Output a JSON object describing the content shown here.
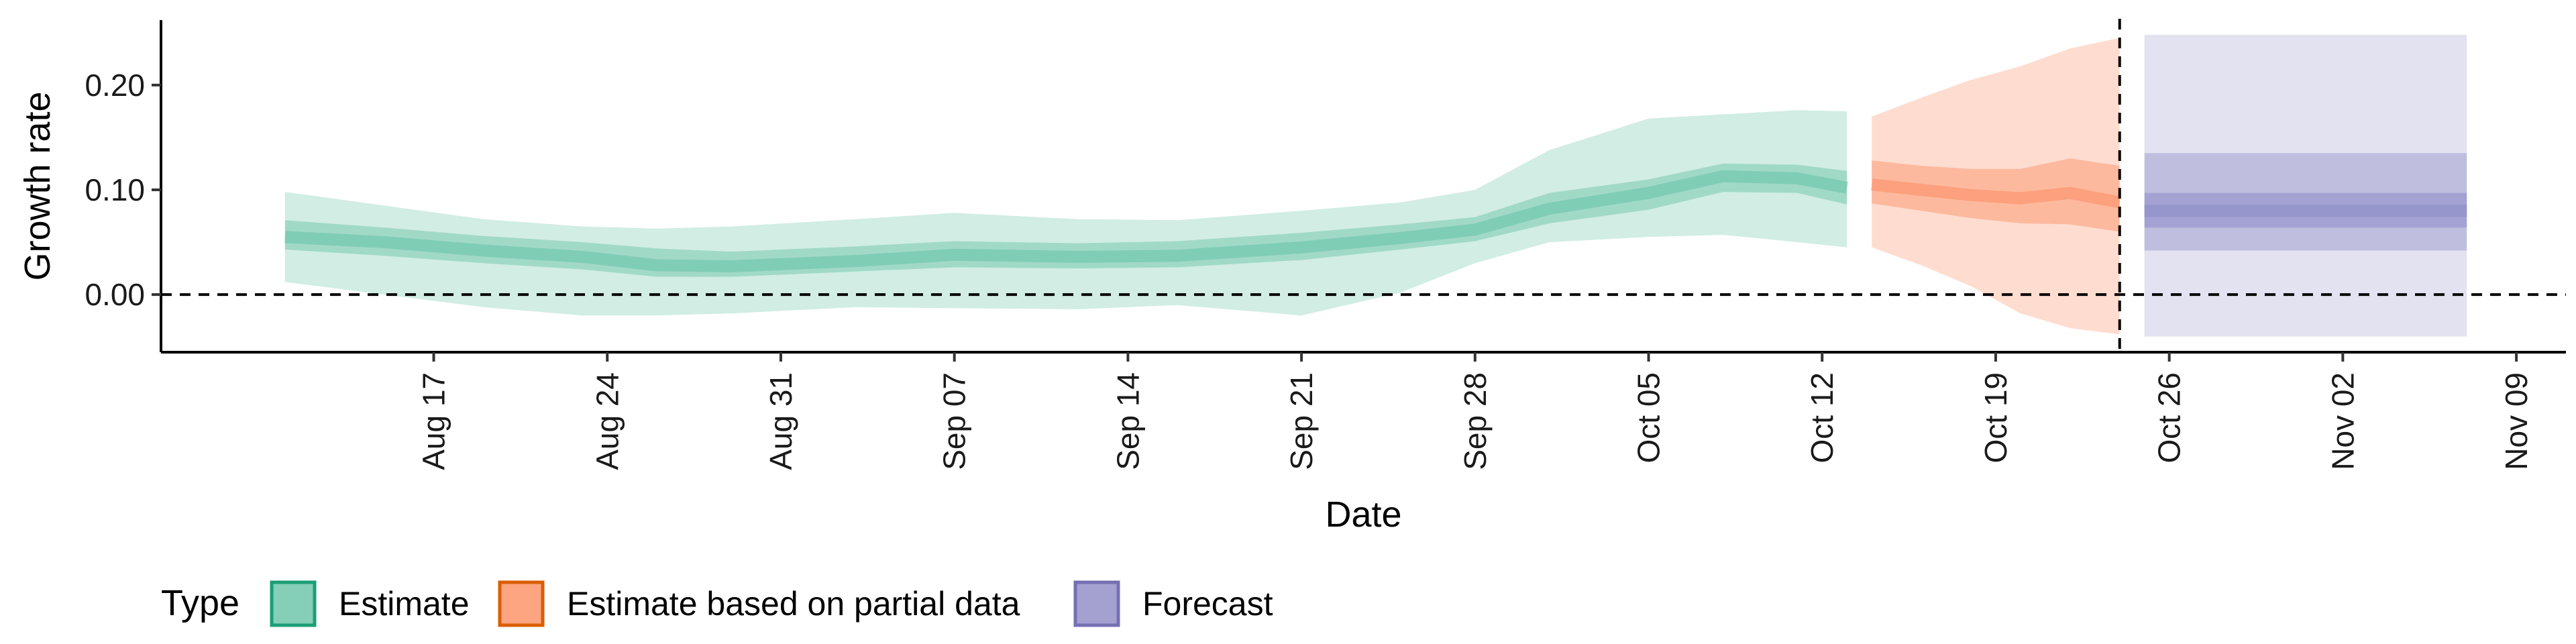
{
  "chart_data": {
    "type": "area",
    "xlabel": "Date",
    "ylabel": "Growth rate",
    "ylim": [
      -0.055,
      0.262
    ],
    "y_ticks": [
      0.0,
      0.1,
      0.2
    ],
    "y_tick_labels": [
      "0.00",
      "0.10",
      "0.20"
    ],
    "x_ticks": [
      "2020-08-17",
      "2020-08-24",
      "2020-08-31",
      "2020-09-07",
      "2020-09-14",
      "2020-09-21",
      "2020-09-28",
      "2020-10-05",
      "2020-10-12",
      "2020-10-19",
      "2020-10-26",
      "2020-11-02",
      "2020-11-09"
    ],
    "x_tick_labels": [
      "Aug 17",
      "Aug 24",
      "Aug 31",
      "Sep 07",
      "Sep 14",
      "Sep 21",
      "Sep 28",
      "Oct 05",
      "Oct 12",
      "Oct 19",
      "Oct 26",
      "Nov 02",
      "Nov 09"
    ],
    "xlim": [
      "2020-08-06",
      "2020-11-11"
    ],
    "reference_lines": [
      {
        "axis": "y",
        "value": 0,
        "style": "dashed"
      },
      {
        "axis": "x",
        "value": "2020-10-24",
        "style": "dashed"
      }
    ],
    "legend": {
      "title": "Type",
      "position": "bottom-left",
      "entries": [
        "Estimate",
        "Estimate based on partial data",
        "Forecast"
      ]
    },
    "colors": {
      "Estimate": {
        "fill": "#66c2a5",
        "line": "#1b9e77"
      },
      "Estimate based on partial data": {
        "fill": "#fc8d62",
        "line": "#d95f02"
      },
      "Forecast": {
        "fill": "#8d8ac6",
        "line": "#7570b3"
      }
    },
    "series": [
      {
        "name": "Estimate",
        "x": [
          "2020-08-11",
          "2020-08-15",
          "2020-08-19",
          "2020-08-23",
          "2020-08-26",
          "2020-08-29",
          "2020-09-03",
          "2020-09-07",
          "2020-09-12",
          "2020-09-16",
          "2020-09-21",
          "2020-09-25",
          "2020-09-28",
          "2020-10-01",
          "2020-10-05",
          "2020-10-08",
          "2020-10-11",
          "2020-10-13"
        ],
        "median": [
          0.055,
          0.05,
          0.042,
          0.036,
          0.028,
          0.027,
          0.032,
          0.038,
          0.036,
          0.037,
          0.045,
          0.054,
          0.062,
          0.082,
          0.097,
          0.113,
          0.111,
          0.102
        ],
        "lower_50": [
          0.043,
          0.037,
          0.03,
          0.024,
          0.017,
          0.017,
          0.022,
          0.026,
          0.025,
          0.026,
          0.033,
          0.043,
          0.051,
          0.068,
          0.081,
          0.098,
          0.097,
          0.086
        ],
        "upper_50": [
          0.071,
          0.064,
          0.056,
          0.05,
          0.044,
          0.041,
          0.046,
          0.051,
          0.049,
          0.051,
          0.059,
          0.067,
          0.074,
          0.097,
          0.11,
          0.125,
          0.124,
          0.118
        ],
        "lower_90": [
          0.012,
          0.0,
          -0.012,
          -0.02,
          -0.02,
          -0.018,
          -0.012,
          -0.013,
          -0.014,
          -0.01,
          -0.02,
          0.002,
          0.03,
          0.05,
          0.055,
          0.057,
          0.05,
          0.045
        ],
        "upper_90": [
          0.098,
          0.085,
          0.072,
          0.065,
          0.063,
          0.065,
          0.072,
          0.078,
          0.072,
          0.071,
          0.08,
          0.088,
          0.1,
          0.138,
          0.168,
          0.172,
          0.176,
          0.175
        ]
      },
      {
        "name": "Estimate based on partial data",
        "x": [
          "2020-10-14",
          "2020-10-16",
          "2020-10-18",
          "2020-10-20",
          "2020-10-22",
          "2020-10-24"
        ],
        "median": [
          0.105,
          0.1,
          0.095,
          0.092,
          0.097,
          0.088
        ],
        "lower_50": [
          0.087,
          0.08,
          0.073,
          0.068,
          0.067,
          0.06
        ],
        "upper_50": [
          0.128,
          0.123,
          0.12,
          0.12,
          0.13,
          0.123
        ],
        "lower_90": [
          0.045,
          0.028,
          0.008,
          -0.018,
          -0.032,
          -0.038
        ],
        "upper_90": [
          0.17,
          0.188,
          0.205,
          0.218,
          0.235,
          0.245
        ]
      },
      {
        "name": "Forecast",
        "x": [
          "2020-10-25",
          "2020-11-07"
        ],
        "median": [
          0.08,
          0.08
        ],
        "lower_50": [
          0.064,
          0.064
        ],
        "upper_50": [
          0.097,
          0.097
        ],
        "lower_90": [
          0.042,
          0.042
        ],
        "upper_90": [
          0.135,
          0.135
        ],
        "lower_95": [
          -0.04,
          -0.04
        ],
        "upper_95": [
          0.248,
          0.248
        ]
      }
    ]
  }
}
